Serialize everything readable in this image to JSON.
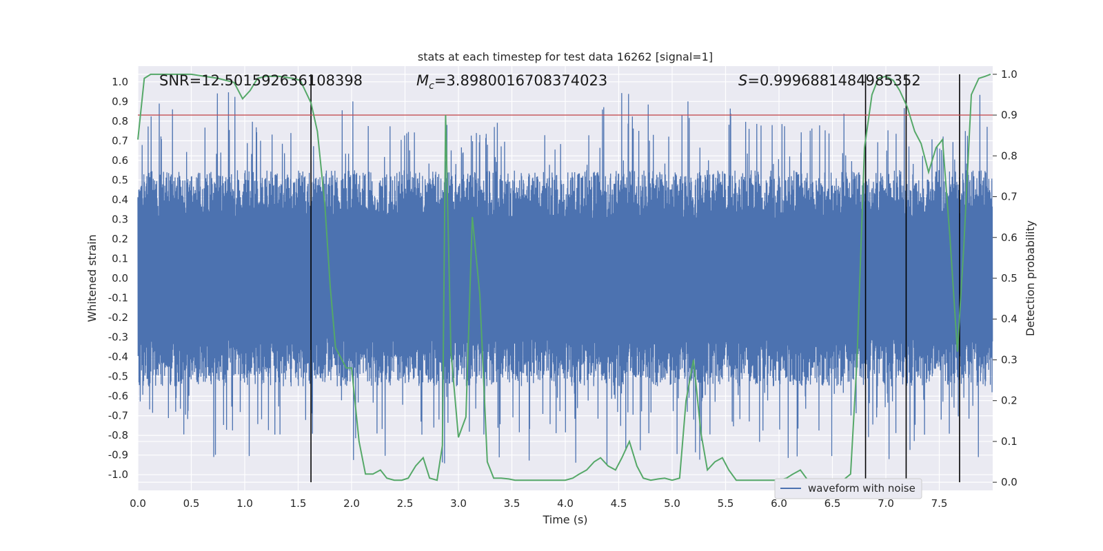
{
  "chart_data": {
    "type": "line",
    "title": "stats at each timestep for test data 16262 [signal=1]",
    "xlabel": "Time (s)",
    "ylabel": "Whitened strain",
    "y2label": "Detection probability",
    "xlim": [
      0,
      8
    ],
    "ylim": [
      -1.08,
      1.08
    ],
    "y2lim": [
      -0.02,
      1.02
    ],
    "xticks": [
      0.0,
      0.5,
      1.0,
      1.5,
      2.0,
      2.5,
      3.0,
      3.5,
      4.0,
      4.5,
      5.0,
      5.5,
      6.0,
      6.5,
      7.0,
      7.5
    ],
    "xtick_labels": [
      "0.0",
      "0.5",
      "1.0",
      "1.5",
      "2.0",
      "2.5",
      "3.0",
      "3.5",
      "4.0",
      "4.5",
      "5.0",
      "5.5",
      "6.0",
      "6.5",
      "7.0",
      "7.5"
    ],
    "yticks": [
      1.0,
      0.9,
      0.8,
      0.7,
      0.6,
      0.5,
      0.4,
      0.3,
      0.2,
      0.1,
      0.0,
      -0.1,
      -0.2,
      -0.3,
      -0.4,
      -0.5,
      -0.6,
      -0.7,
      -0.8,
      -0.9,
      -1.0
    ],
    "ytick_labels": [
      "1.0",
      "0.9",
      "0.8",
      "0.7",
      "0.6",
      "0.5",
      "0.4",
      "0.3",
      "0.2",
      "0.1",
      "0.0",
      "-0.1",
      "-0.2",
      "-0.3",
      "-0.4",
      "-0.5",
      "-0.6",
      "-0.7",
      "-0.8",
      "-0.9",
      "-1.0"
    ],
    "y2ticks": [
      1.0,
      0.9,
      0.8,
      0.7,
      0.6,
      0.5,
      0.4,
      0.3,
      0.2,
      0.1,
      0.0
    ],
    "y2tick_labels": [
      "1.0",
      "0.9",
      "0.8",
      "0.7",
      "0.6",
      "0.5",
      "0.4",
      "0.3",
      "0.2",
      "0.1",
      "0.0"
    ],
    "grid": true,
    "legend": {
      "placement": "lower-center-right",
      "entries": [
        "waveform with noise"
      ]
    },
    "annotations": {
      "snr": "SNR=12.501592636108398",
      "mc_symbol": "M",
      "mc_sub": "c",
      "mc_value": "=3.8980016708374023",
      "s_symbol": "S",
      "s_value": "=0.9996881484985352"
    },
    "threshold": {
      "axis": "y2",
      "value": 0.9,
      "color": "#c44e52"
    },
    "detection_markers_x": [
      1.62,
      6.81,
      7.19,
      7.69
    ],
    "series": [
      {
        "name": "waveform with noise",
        "axis": "y",
        "color": "#4c72b0",
        "kind": "noisy_strain",
        "t_range": [
          0,
          8
        ],
        "envelope_typical": 0.55,
        "envelope_max": 0.95
      },
      {
        "name": "detection probability",
        "axis": "y2",
        "color": "#55a868",
        "x": [
          0.0,
          0.06,
          0.12,
          0.25,
          0.5,
          0.75,
          0.9,
          0.98,
          1.05,
          1.12,
          1.2,
          1.32,
          1.45,
          1.52,
          1.62,
          1.68,
          1.75,
          1.8,
          1.85,
          1.95,
          2.0,
          2.07,
          2.13,
          2.2,
          2.27,
          2.33,
          2.4,
          2.47,
          2.53,
          2.6,
          2.67,
          2.73,
          2.8,
          2.85,
          2.88,
          2.93,
          3.0,
          3.07,
          3.13,
          3.2,
          3.27,
          3.33,
          3.4,
          3.47,
          3.53,
          3.6,
          3.67,
          3.73,
          3.8,
          3.87,
          3.93,
          4.0,
          4.07,
          4.13,
          4.2,
          4.27,
          4.33,
          4.4,
          4.47,
          4.53,
          4.6,
          4.67,
          4.73,
          4.8,
          4.87,
          4.93,
          5.0,
          5.07,
          5.13,
          5.2,
          5.27,
          5.33,
          5.4,
          5.47,
          5.53,
          5.6,
          5.67,
          5.73,
          5.8,
          5.87,
          5.93,
          6.0,
          6.07,
          6.13,
          6.2,
          6.27,
          6.33,
          6.4,
          6.47,
          6.53,
          6.6,
          6.67,
          6.73,
          6.8,
          6.87,
          6.93,
          7.0,
          7.07,
          7.13,
          7.2,
          7.27,
          7.33,
          7.4,
          7.47,
          7.53,
          7.6,
          7.67,
          7.73,
          7.8,
          7.87,
          7.93,
          7.98
        ],
        "values": [
          0.84,
          0.99,
          1.0,
          1.0,
          1.0,
          0.99,
          0.98,
          0.94,
          0.96,
          0.99,
          0.995,
          0.995,
          0.99,
          0.985,
          0.93,
          0.86,
          0.68,
          0.48,
          0.33,
          0.28,
          0.28,
          0.1,
          0.02,
          0.02,
          0.03,
          0.01,
          0.005,
          0.005,
          0.01,
          0.04,
          0.06,
          0.01,
          0.005,
          0.09,
          0.9,
          0.32,
          0.11,
          0.16,
          0.65,
          0.46,
          0.05,
          0.01,
          0.01,
          0.008,
          0.005,
          0.005,
          0.005,
          0.005,
          0.005,
          0.005,
          0.005,
          0.005,
          0.01,
          0.02,
          0.03,
          0.05,
          0.06,
          0.04,
          0.03,
          0.06,
          0.1,
          0.04,
          0.01,
          0.005,
          0.008,
          0.01,
          0.005,
          0.01,
          0.2,
          0.3,
          0.12,
          0.03,
          0.05,
          0.06,
          0.03,
          0.005,
          0.005,
          0.005,
          0.005,
          0.005,
          0.005,
          0.005,
          0.01,
          0.02,
          0.03,
          0.005,
          0.005,
          0.005,
          0.005,
          0.005,
          0.005,
          0.02,
          0.3,
          0.82,
          0.95,
          0.99,
          0.995,
          0.985,
          0.96,
          0.92,
          0.86,
          0.83,
          0.76,
          0.82,
          0.84,
          0.6,
          0.32,
          0.58,
          0.95,
          0.99,
          0.995,
          1.0
        ]
      }
    ]
  }
}
